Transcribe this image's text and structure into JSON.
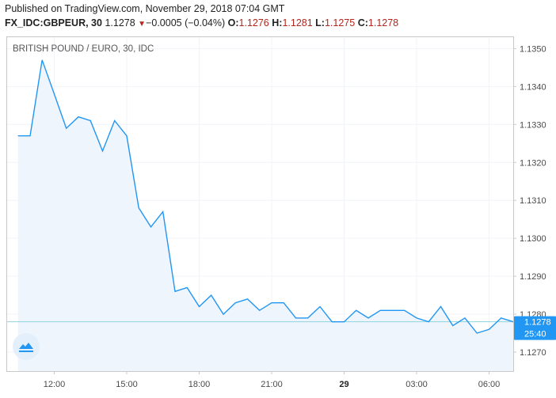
{
  "header": {
    "published": "Published on TradingView.com, November 29, 2018 07:04 GMT",
    "symbol": "FX_IDC:GBPEUR, 30",
    "last": "1.1278",
    "change": "−0.0005 (−0.04%)",
    "open_label": "O:",
    "open": "1.1276",
    "high_label": "H:",
    "high": "1.1281",
    "low_label": "L:",
    "low": "1.1275",
    "close_label": "C:",
    "close": "1.1278"
  },
  "badge": {
    "price": "1.1278",
    "countdown": "25:40"
  },
  "logo_icon": "tradingview-cloud-logo",
  "colors": {
    "line": "#2196f3",
    "area": "#eef5fd",
    "price_line": "#8fd3e0",
    "badge": "#2196f3",
    "down": "#b3261e"
  },
  "chart_data": {
    "type": "area",
    "title": "BRITISH POUND / EURO, 30, IDC",
    "xlabel": "",
    "ylabel": "",
    "ylim": [
      1.1265,
      1.1353
    ],
    "yticks": [
      "1.1270",
      "1.1280",
      "1.1290",
      "1.1300",
      "1.1310",
      "1.1320",
      "1.1330",
      "1.1340",
      "1.1350"
    ],
    "xticks": [
      {
        "label": "12:00",
        "index": 3
      },
      {
        "label": "15:00",
        "index": 9
      },
      {
        "label": "18:00",
        "index": 15
      },
      {
        "label": "21:00",
        "index": 21
      },
      {
        "label": "29",
        "index": 27,
        "bold": true
      },
      {
        "label": "03:00",
        "index": 33
      },
      {
        "label": "06:00",
        "index": 39
      }
    ],
    "x_start_index": -0.9,
    "x_end_index": 41,
    "grid": true,
    "legend": "none",
    "series": [
      {
        "values": [
          1.1327,
          1.1327,
          1.1347,
          1.1338,
          1.1329,
          1.1332,
          1.1331,
          1.1323,
          1.1331,
          1.1327,
          1.1308,
          1.1303,
          1.1307,
          1.1286,
          1.1287,
          1.1282,
          1.1285,
          1.128,
          1.1283,
          1.1284,
          1.1281,
          1.1283,
          1.1283,
          1.1279,
          1.1279,
          1.1282,
          1.1278,
          1.1278,
          1.1281,
          1.1279,
          1.1281,
          1.1281,
          1.1281,
          1.1279,
          1.1278,
          1.1282,
          1.1277,
          1.1279,
          1.1275,
          1.1276,
          1.1279,
          1.1278
        ]
      }
    ]
  }
}
